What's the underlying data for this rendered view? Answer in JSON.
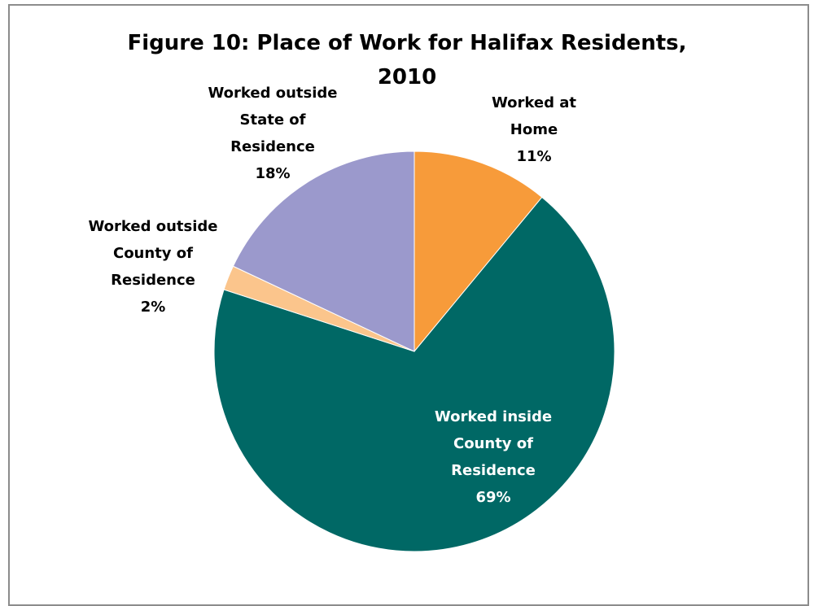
{
  "chart_data": {
    "type": "pie",
    "title": "Figure 10: Place of Work for Halifax Residents,\n2010",
    "slices": [
      {
        "label": [
          "Worked at",
          "Home"
        ],
        "percent_label": "11%",
        "value": 11,
        "color": "#F79B3A",
        "label_color": "#000000",
        "label_anchor": "outside-upper-right"
      },
      {
        "label": [
          "Worked inside",
          "County of",
          "Residence"
        ],
        "percent_label": "69%",
        "value": 69,
        "color": "#006865",
        "label_color": "#ffffff",
        "label_anchor": "inside"
      },
      {
        "label": [
          "Worked outside",
          "County of",
          "Residence"
        ],
        "percent_label": "2%",
        "value": 2,
        "color": "#FBC58C",
        "label_color": "#000000",
        "label_anchor": "outside-left"
      },
      {
        "label": [
          "Worked outside",
          "State of",
          "Residence"
        ],
        "percent_label": "18%",
        "value": 18,
        "color": "#9B99CC",
        "label_color": "#000000",
        "label_anchor": "outside-upper-left"
      }
    ],
    "start_angle": "12 o'clock",
    "direction": "clockwise",
    "legend": "none"
  }
}
